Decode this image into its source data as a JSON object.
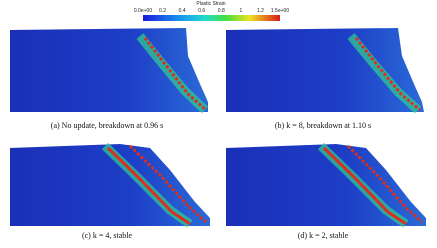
{
  "colorbar": {
    "title": "Plastic Strain",
    "ticks": [
      "0.0e+00",
      "0.2",
      "0.4",
      "0.6",
      "0.8",
      "1",
      "1.2",
      "1.5e+00"
    ]
  },
  "panels": [
    {
      "caption": "(a) No update, breakdown at 0.96 s"
    },
    {
      "caption": "(b) k = 8, breakdown at 1.10 s"
    },
    {
      "caption": "(c) k = 4, stable"
    },
    {
      "caption": "(d) k = 2, stable"
    }
  ]
}
